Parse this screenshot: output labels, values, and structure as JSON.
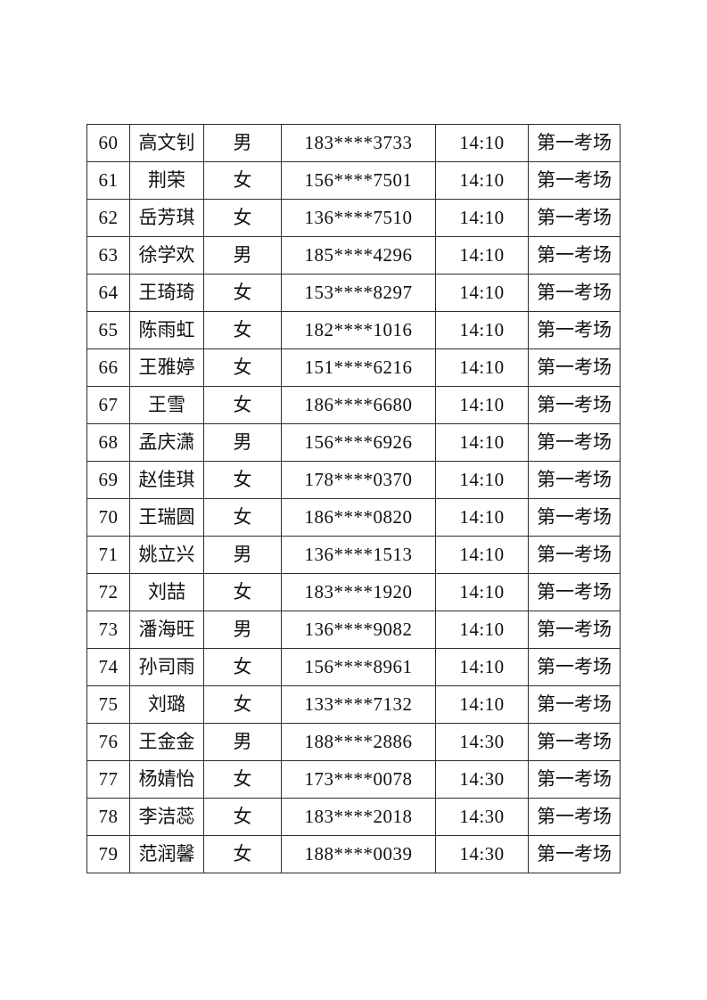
{
  "page": {
    "background_color": "#ffffff",
    "text_color": "#111111",
    "border_color": "#2e2e2e"
  },
  "table": {
    "column_keys": [
      "no",
      "name",
      "gender",
      "phone",
      "time",
      "room"
    ],
    "rows": [
      {
        "no": "60",
        "name": "高文钊",
        "gender": "男",
        "phone": "183****3733",
        "time": "14:10",
        "room": "第一考场"
      },
      {
        "no": "61",
        "name": "荆荣",
        "gender": "女",
        "phone": "156****7501",
        "time": "14:10",
        "room": "第一考场"
      },
      {
        "no": "62",
        "name": "岳芳琪",
        "gender": "女",
        "phone": "136****7510",
        "time": "14:10",
        "room": "第一考场"
      },
      {
        "no": "63",
        "name": "徐学欢",
        "gender": "男",
        "phone": "185****4296",
        "time": "14:10",
        "room": "第一考场"
      },
      {
        "no": "64",
        "name": "王琦琦",
        "gender": "女",
        "phone": "153****8297",
        "time": "14:10",
        "room": "第一考场"
      },
      {
        "no": "65",
        "name": "陈雨虹",
        "gender": "女",
        "phone": "182****1016",
        "time": "14:10",
        "room": "第一考场"
      },
      {
        "no": "66",
        "name": "王雅婷",
        "gender": "女",
        "phone": "151****6216",
        "time": "14:10",
        "room": "第一考场"
      },
      {
        "no": "67",
        "name": "王雪",
        "gender": "女",
        "phone": "186****6680",
        "time": "14:10",
        "room": "第一考场"
      },
      {
        "no": "68",
        "name": "孟庆潇",
        "gender": "男",
        "phone": "156****6926",
        "time": "14:10",
        "room": "第一考场"
      },
      {
        "no": "69",
        "name": "赵佳琪",
        "gender": "女",
        "phone": "178****0370",
        "time": "14:10",
        "room": "第一考场"
      },
      {
        "no": "70",
        "name": "王瑞圆",
        "gender": "女",
        "phone": "186****0820",
        "time": "14:10",
        "room": "第一考场"
      },
      {
        "no": "71",
        "name": "姚立兴",
        "gender": "男",
        "phone": "136****1513",
        "time": "14:10",
        "room": "第一考场"
      },
      {
        "no": "72",
        "name": "刘喆",
        "gender": "女",
        "phone": "183****1920",
        "time": "14:10",
        "room": "第一考场"
      },
      {
        "no": "73",
        "name": "潘海旺",
        "gender": "男",
        "phone": "136****9082",
        "time": "14:10",
        "room": "第一考场"
      },
      {
        "no": "74",
        "name": "孙司雨",
        "gender": "女",
        "phone": "156****8961",
        "time": "14:10",
        "room": "第一考场"
      },
      {
        "no": "75",
        "name": "刘璐",
        "gender": "女",
        "phone": "133****7132",
        "time": "14:10",
        "room": "第一考场"
      },
      {
        "no": "76",
        "name": "王金金",
        "gender": "男",
        "phone": "188****2886",
        "time": "14:30",
        "room": "第一考场"
      },
      {
        "no": "77",
        "name": "杨婧怡",
        "gender": "女",
        "phone": "173****0078",
        "time": "14:30",
        "room": "第一考场"
      },
      {
        "no": "78",
        "name": "李洁蕊",
        "gender": "女",
        "phone": "183****2018",
        "time": "14:30",
        "room": "第一考场"
      },
      {
        "no": "79",
        "name": "范润馨",
        "gender": "女",
        "phone": "188****0039",
        "time": "14:30",
        "room": "第一考场"
      }
    ]
  }
}
